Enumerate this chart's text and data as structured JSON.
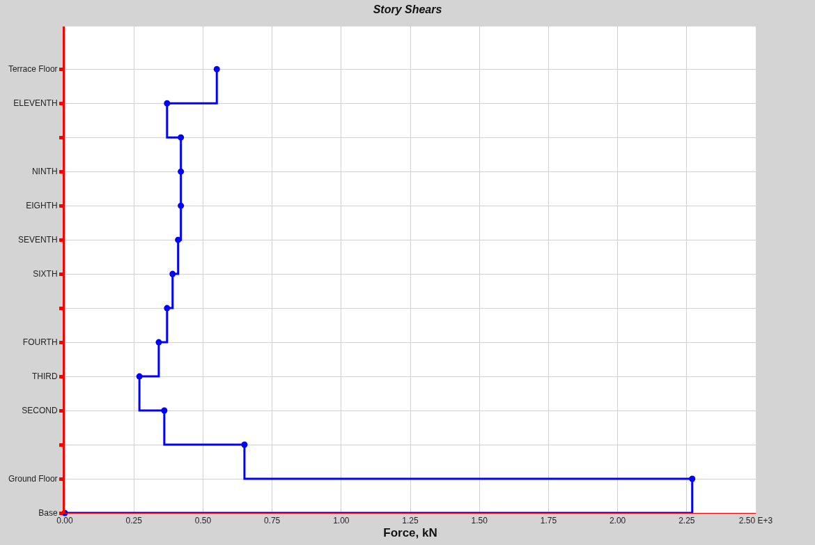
{
  "chart_data": {
    "type": "step",
    "orientation": "horizontal",
    "title": "Story Shears",
    "xlabel": "Force, kN",
    "categories": [
      "Terrace Floor",
      "ELEVENTH",
      null,
      "NINTH",
      "EIGHTH",
      "SEVENTH",
      "SIXTH",
      null,
      "FOURTH",
      "THIRD",
      "SECOND",
      null,
      "Ground Floor",
      "Base"
    ],
    "values": [
      0.55,
      0.37,
      0.42,
      0.42,
      0.42,
      0.41,
      0.39,
      0.37,
      0.34,
      0.27,
      0.36,
      0.65,
      2.27,
      0
    ],
    "color": "#0000ff",
    "marker": "circle",
    "line_style": "solid",
    "xlim": [
      0,
      2.5
    ],
    "xticks": [
      {
        "value": 0,
        "label": "0.00"
      },
      0.25,
      {
        "value": 0.5,
        "label": "0.50"
      },
      0.75,
      {
        "value": 1,
        "label": "1.00"
      },
      1.25,
      {
        "value": 1.5,
        "label": "1.50"
      },
      1.75,
      {
        "value": 2,
        "label": "2.00"
      },
      2.25,
      {
        "value": 2.5,
        "label": "2.50 E+3"
      }
    ],
    "grid": true
  }
}
